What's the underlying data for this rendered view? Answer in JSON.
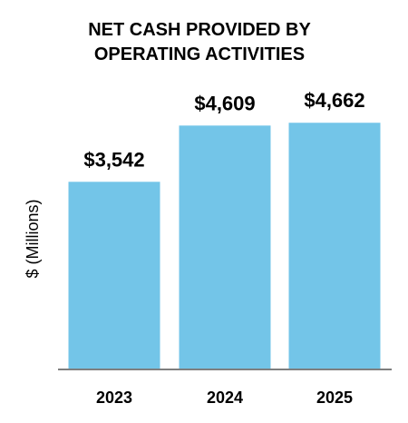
{
  "chart_data": {
    "type": "bar",
    "title_lines": [
      "NET CASH PROVIDED BY",
      "OPERATING ACTIVITIES"
    ],
    "ylabel": "$ (Millions)",
    "xlabel": "",
    "categories": [
      "2023",
      "2024",
      "2025"
    ],
    "values": [
      3542,
      4609,
      4662
    ],
    "value_labels": [
      "$3,542",
      "$4,609",
      "$4,662"
    ],
    "ylim": [
      0,
      5200
    ],
    "grid": false,
    "legend": "none",
    "bar_color": "#73C5E8",
    "axis_color": "#7F7F7F"
  }
}
